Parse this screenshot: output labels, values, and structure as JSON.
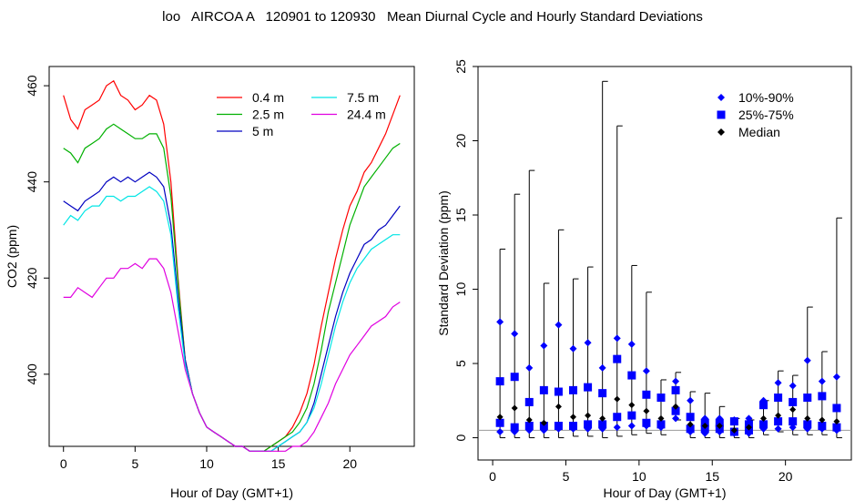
{
  "page_title": "loo   AIRCOA A   120901 to 120930   Mean Diurnal Cycle and Hourly Standard Deviations",
  "chart_data": [
    {
      "type": "line",
      "xlabel": "Hour of Day (GMT+1)",
      "ylabel": "CO2 (ppm)",
      "xlim": [
        -1,
        24.5
      ],
      "ylim": [
        385,
        464
      ],
      "xticks": [
        0,
        5,
        10,
        15,
        20
      ],
      "yticks": [
        400,
        420,
        440,
        460
      ],
      "grid": false,
      "legend_position": "top-right",
      "x": [
        0,
        0.5,
        1,
        1.5,
        2,
        2.5,
        3,
        3.5,
        4,
        4.5,
        5,
        5.5,
        6,
        6.5,
        7,
        7.5,
        8,
        8.5,
        9,
        9.5,
        10,
        10.5,
        11,
        11.5,
        12,
        12.5,
        13,
        13.5,
        14,
        14.5,
        15,
        15.5,
        16,
        16.5,
        17,
        17.5,
        18,
        18.5,
        19,
        19.5,
        20,
        20.5,
        21,
        21.5,
        22,
        22.5,
        23,
        23.5
      ],
      "series": [
        {
          "name": "0.4 m",
          "color": "#ff0000",
          "values": [
            458,
            453,
            451,
            455,
            456,
            457,
            460,
            461,
            458,
            457,
            455,
            456,
            458,
            457,
            452,
            440,
            420,
            403,
            396,
            392,
            389,
            388,
            387,
            386,
            385,
            385,
            384,
            384,
            384,
            385,
            386,
            387,
            389,
            392,
            396,
            402,
            410,
            417,
            424,
            430,
            435,
            438,
            442,
            444,
            447,
            450,
            454,
            458
          ]
        },
        {
          "name": "2.5 m",
          "color": "#00b000",
          "values": [
            447,
            446,
            444,
            447,
            448,
            449,
            451,
            452,
            451,
            450,
            449,
            449,
            450,
            450,
            447,
            437,
            419,
            403,
            396,
            392,
            389,
            388,
            387,
            386,
            385,
            385,
            384,
            384,
            384,
            385,
            386,
            387,
            388,
            390,
            393,
            398,
            405,
            413,
            419,
            425,
            431,
            435,
            439,
            441,
            443,
            445,
            447,
            448
          ]
        },
        {
          "name": "5 m",
          "color": "#0000c0",
          "values": [
            436,
            435,
            434,
            436,
            437,
            438,
            440,
            441,
            440,
            441,
            440,
            441,
            442,
            441,
            439,
            431,
            416,
            403,
            396,
            392,
            389,
            388,
            387,
            386,
            385,
            385,
            384,
            384,
            384,
            384,
            385,
            386,
            387,
            388,
            390,
            394,
            400,
            406,
            412,
            417,
            421,
            424,
            427,
            428,
            430,
            431,
            433,
            435
          ]
        },
        {
          "name": "7.5 m",
          "color": "#00e5e5",
          "values": [
            431,
            433,
            432,
            434,
            435,
            435,
            437,
            437,
            436,
            437,
            437,
            438,
            439,
            438,
            436,
            429,
            414,
            402,
            396,
            392,
            389,
            388,
            387,
            386,
            385,
            385,
            384,
            384,
            384,
            384,
            385,
            386,
            387,
            388,
            390,
            393,
            398,
            404,
            410,
            415,
            419,
            422,
            424,
            426,
            427,
            428,
            429,
            429
          ]
        },
        {
          "name": "24.4 m",
          "color": "#e000e0",
          "values": [
            416,
            416,
            418,
            417,
            416,
            418,
            420,
            420,
            422,
            422,
            423,
            422,
            424,
            424,
            422,
            417,
            409,
            401,
            396,
            392,
            389,
            388,
            387,
            386,
            385,
            385,
            384,
            384,
            384,
            384,
            384,
            384,
            385,
            385,
            386,
            388,
            391,
            394,
            398,
            401,
            404,
            406,
            408,
            410,
            411,
            412,
            414,
            415
          ]
        }
      ]
    },
    {
      "type": "scatter",
      "xlabel": "Hour of Day (GMT+1)",
      "ylabel": "Standard Deviation (ppm)",
      "xlim": [
        -1,
        24.5
      ],
      "ylim": [
        -1.5,
        25
      ],
      "xticks": [
        0,
        5,
        10,
        15,
        20
      ],
      "yticks": [
        0,
        5,
        10,
        15,
        20,
        25
      ],
      "grid": false,
      "legend_position": "top-right",
      "reference_line": 0.5,
      "legend": [
        {
          "label": "10%-90%",
          "marker": "diamond",
          "color": "#0000ff"
        },
        {
          "label": "25%-75%",
          "marker": "square",
          "color": "#0000ff"
        },
        {
          "label": "Median",
          "marker": "diamond",
          "color": "#000000"
        }
      ],
      "hours": [
        0.5,
        1.5,
        2.5,
        3.5,
        4.5,
        5.5,
        6.5,
        7.5,
        8.5,
        9.5,
        10.5,
        11.5,
        12.5,
        13.5,
        14.5,
        15.5,
        16.5,
        17.5,
        18.5,
        19.5,
        20.5,
        21.5,
        22.5,
        23.5
      ],
      "p90": [
        7.8,
        7.0,
        4.7,
        6.2,
        7.6,
        6.0,
        6.4,
        4.7,
        6.7,
        6.3,
        4.5,
        2.7,
        3.8,
        2.5,
        1.3,
        1.3,
        1.2,
        1.3,
        2.5,
        3.7,
        3.5,
        5.2,
        3.8,
        4.1
      ],
      "p75": [
        3.8,
        4.1,
        2.4,
        3.2,
        3.1,
        3.2,
        3.4,
        3.0,
        5.3,
        4.2,
        2.9,
        2.7,
        3.2,
        1.4,
        1.0,
        1.0,
        1.1,
        0.9,
        2.2,
        2.7,
        2.4,
        2.7,
        2.8,
        2.0
      ],
      "median": [
        1.4,
        2.0,
        1.2,
        1.0,
        2.1,
        1.4,
        1.5,
        1.3,
        2.6,
        2.2,
        1.8,
        1.3,
        2.1,
        0.9,
        0.8,
        0.8,
        0.5,
        0.7,
        1.3,
        1.5,
        1.9,
        1.3,
        1.2,
        1.1
      ],
      "p25": [
        1.0,
        0.7,
        0.8,
        0.8,
        0.8,
        0.8,
        0.9,
        0.9,
        1.4,
        1.5,
        1.0,
        0.9,
        1.8,
        0.6,
        0.6,
        0.6,
        0.4,
        0.5,
        0.9,
        1.1,
        1.1,
        0.9,
        0.8,
        0.7
      ],
      "p10": [
        0.4,
        0.4,
        0.5,
        0.5,
        0.6,
        0.6,
        0.6,
        0.6,
        0.7,
        0.8,
        0.8,
        0.7,
        1.3,
        0.4,
        0.3,
        0.4,
        0.3,
        0.3,
        0.6,
        0.6,
        0.7,
        0.6,
        0.6,
        0.5
      ],
      "max": [
        12.7,
        16.4,
        18.0,
        10.4,
        14.0,
        10.7,
        11.5,
        24.0,
        21.0,
        11.6,
        9.8,
        3.9,
        4.4,
        3.1,
        3.0,
        2.1,
        1.3,
        1.2,
        2.5,
        4.5,
        4.2,
        8.8,
        5.8,
        14.8
      ],
      "min": [
        0.0,
        0.0,
        0.0,
        0.0,
        0.0,
        0.1,
        0.1,
        0.0,
        0.1,
        0.2,
        0.3,
        0.2,
        1.2,
        0.0,
        0.0,
        0.0,
        0.0,
        0.0,
        0.2,
        0.4,
        0.2,
        0.2,
        0.2,
        0.0
      ]
    }
  ]
}
